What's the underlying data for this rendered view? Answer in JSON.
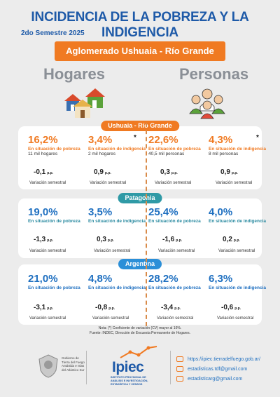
{
  "header": {
    "title": "INCIDENCIA DE LA POBREZA Y LA INDIGENCIA",
    "period": "2do Semestre 2025"
  },
  "region_button": "Aglomerado Ushuaia - Río Grande",
  "columns": {
    "hogares": "Hogares",
    "personas": "Personas"
  },
  "labels": {
    "pobreza": "En situación de pobreza",
    "indigencia": "En situación de indigencia",
    "variacion": "Variación semestral",
    "pp": "p.p."
  },
  "sections": [
    {
      "name": "Ushuaia - Río Grande",
      "hogares_pobreza": {
        "value": "16,2%",
        "sub": "11  mil hogares",
        "var": "-0,1"
      },
      "hogares_indigencia": {
        "value": "3,4%",
        "sub": "2  mil hogares",
        "var": "0,9",
        "star": "*"
      },
      "personas_pobreza": {
        "value": "22,6%",
        "sub": "40,5 mil personas",
        "var": "0,3"
      },
      "personas_indigencia": {
        "value": "4,3%",
        "sub": "8  mil personas",
        "var": "0,9",
        "star": "*"
      }
    },
    {
      "name": "Patagonia",
      "hogares_pobreza": {
        "value": "19,0%",
        "var": "-1,3"
      },
      "hogares_indigencia": {
        "value": "3,5%",
        "var": "0,3"
      },
      "personas_pobreza": {
        "value": "25,4%",
        "var": "-1,6"
      },
      "personas_indigencia": {
        "value": "4,0%",
        "var": "0,2"
      }
    },
    {
      "name": "Argentina",
      "hogares_pobreza": {
        "value": "21,0%",
        "var": "-3,1"
      },
      "hogares_indigencia": {
        "value": "4,8%",
        "var": "-0,8"
      },
      "personas_pobreza": {
        "value": "28,2%",
        "var": "-3,4"
      },
      "personas_indigencia": {
        "value": "6,3%",
        "var": "-0,6"
      }
    }
  ],
  "notes": {
    "nota": "Nota: (*) Coeficiente de variación (CV) mayor al 16%.",
    "fuente": "Fuente: INDEC, Dirección de Encuesta Permanente de Hogares."
  },
  "footer": {
    "gob_lines": [
      "Gobierno de",
      "Tierra del Fuego",
      "Antártida e Islas",
      "del Atlántico Sur"
    ],
    "ipiec": "Ipiec",
    "ipiec_sub": [
      "INSTITUTO PROVINCIAL DE",
      "ANÁLISIS E INVESTIGACIÓN,",
      "ESTADÍSTICA Y CENSOS"
    ],
    "contacts": [
      "https://ipiec.tierradelfuego.gob.ar/",
      "estadisticas.tdf@gmail.com",
      "estadisticarg@gmail.com"
    ]
  },
  "colors": {
    "title_blue": "#1e5aa8",
    "orange": "#f07a22",
    "teal": "#2f9aa6",
    "blue": "#2b8fd8"
  }
}
